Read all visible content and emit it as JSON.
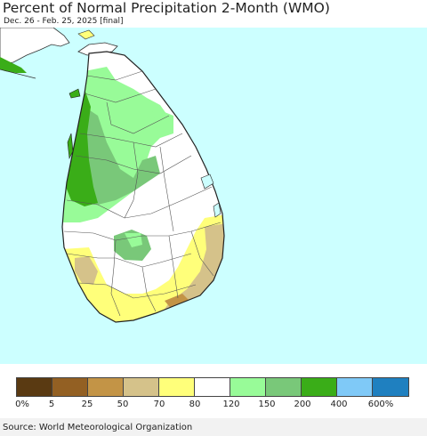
{
  "header": {
    "title": "Percent of Normal Precipitation 2-Month (WMO)",
    "subtitle": "Dec. 26 - Feb. 25, 2025 [final]"
  },
  "map": {
    "ocean_color": "#ccffff",
    "land_base_color": "#ffffff",
    "border_color": "#333333"
  },
  "legend": {
    "colors": [
      "#5a3a12",
      "#936023",
      "#c39446",
      "#d5c28a",
      "#ffff7a",
      "#ffffff",
      "#98fb98",
      "#79c879",
      "#3aad18",
      "#7fc9f7",
      "#1f80c0"
    ],
    "tick_labels": [
      "0%",
      "5",
      "25",
      "50",
      "70",
      "80",
      "120",
      "150",
      "200",
      "400",
      "600%"
    ]
  },
  "footer": {
    "source": "Source: World Meteorological Organization"
  }
}
